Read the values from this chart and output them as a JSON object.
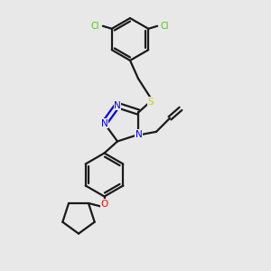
{
  "bg_color": "#e8e8e8",
  "bond_color": "#1a1a1a",
  "N_color": "#0000ee",
  "S_color": "#cccc00",
  "O_color": "#ff0000",
  "Cl_color": "#44cc00",
  "figsize": [
    3.0,
    3.0
  ],
  "dpi": 100,
  "xlim": [
    0,
    10
  ],
  "ylim": [
    0,
    10
  ],
  "lw": 1.6,
  "fsz": 7.5
}
